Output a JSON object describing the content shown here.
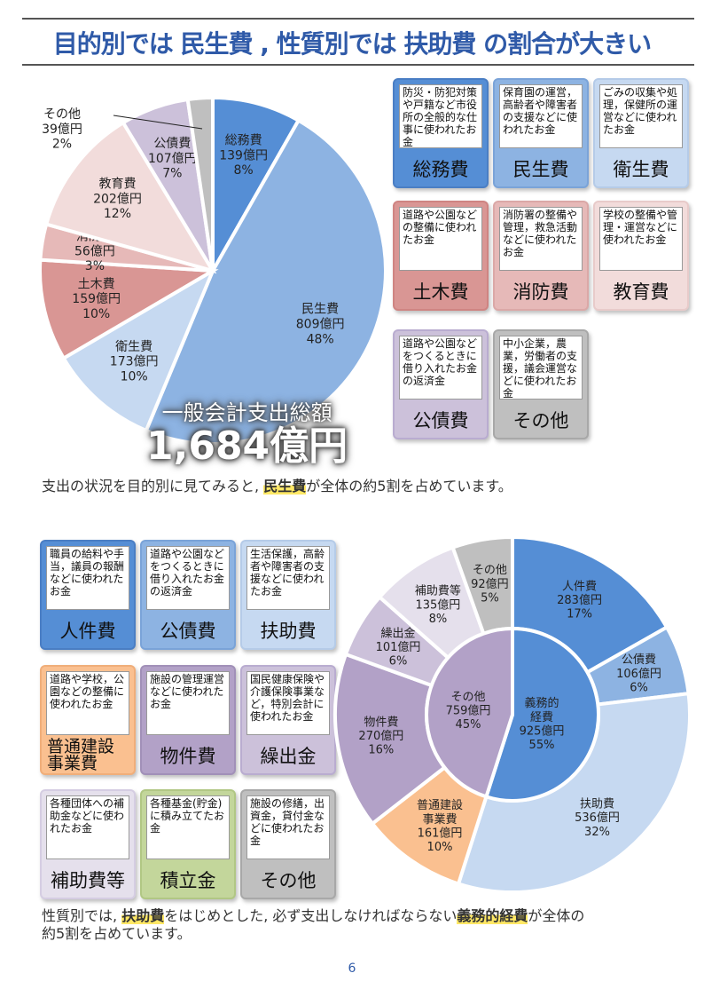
{
  "title": "目的別では 民生費 , 性質別では 扶助費 の割合が大きい",
  "purpose_section": {
    "total_label": "一般会計支出総額",
    "total_value": "1,684億円",
    "caption_before": "支出の状況を目的別に見てみると, ",
    "caption_highlight": "民生費",
    "caption_after": "が全体の約5割を占めています。",
    "cards": [
      {
        "label": "総務費",
        "desc": "防災・防犯対策や戸籍など市役所の全般的な仕事に使われたお金",
        "color": "#558ed5",
        "border": "#4a7ec4"
      },
      {
        "label": "民生費",
        "desc": "保育園の運営，高齢者や障害者の支援などに使われたお金",
        "color": "#8db3e2",
        "border": "#7aa3d8"
      },
      {
        "label": "衛生費",
        "desc": "ごみの収集や処理，保健所の運営などに使われたお金",
        "color": "#c6d9f1",
        "border": "#b5cbe8"
      },
      {
        "label": "土木費",
        "desc": "道路や公園などの整備に使われたお金",
        "color": "#d99694",
        "border": "#cf8482"
      },
      {
        "label": "消防費",
        "desc": "消防署の整備や管理，救急活動などに使われたお金",
        "color": "#e6b9b8",
        "border": "#dba8a7"
      },
      {
        "label": "教育費",
        "desc": "学校の整備や管理・運営などに使われたお金",
        "color": "#f2dcdb",
        "border": "#e8cbca"
      },
      {
        "label": "公債費",
        "desc": "道路や公園などをつくるときに借り入れたお金の返済金",
        "color": "#ccc1da",
        "border": "#b9acd0"
      },
      {
        "label": "その他",
        "desc": "中小企業，農業，労働者の支援，議会運営などに使われたお金",
        "color": "#bfbfbf",
        "border": "#a8a8a8"
      }
    ]
  },
  "nature_section": {
    "caption_p1": "性質別では, ",
    "caption_h1": "扶助費",
    "caption_p2": "をはじめとした, 必ず支出しなければならない",
    "caption_h2": "義務的経費",
    "caption_p3": "が全体の",
    "caption_line2": "約5割を占めています。",
    "cards": [
      {
        "label": "人件費",
        "desc": "職員の給料や手当，議員の報酬などに使われたお金",
        "color": "#558ed5",
        "border": "#4a7ec4"
      },
      {
        "label": "公債費",
        "desc": "道路や公園などをつくるときに借り入れたお金の返済金",
        "color": "#8db3e2",
        "border": "#7aa3d8"
      },
      {
        "label": "扶助費",
        "desc": "生活保護，高齢者や障害者の支援などに使われたお金",
        "color": "#c6d9f1",
        "border": "#b5cbe8"
      },
      {
        "label": "普通建設\n事業費",
        "desc": "道路や学校，公園などの整備に使われたお金",
        "color": "#fac090",
        "border": "#f0ae7a"
      },
      {
        "label": "物件費",
        "desc": "施設の管理運営などに使われたお金",
        "color": "#b2a1c7",
        "border": "#a190b8"
      },
      {
        "label": "繰出金",
        "desc": "国民健康保険や介護保険事業など，特別会計に使われたお金",
        "color": "#ccc1da",
        "border": "#b9acd0"
      },
      {
        "label": "補助費等",
        "desc": "各種団体への補助金などに使われたお金",
        "color": "#e5e0ec",
        "border": "#d5cde2"
      },
      {
        "label": "積立金",
        "desc": "各種基金(貯金)に積み立てたお金",
        "color": "#c3d69b",
        "border": "#b1c784"
      },
      {
        "label": "その他",
        "desc": "施設の修繕，出資金，貸付金などに使われたお金",
        "color": "#bfbfbf",
        "border": "#a8a8a8"
      }
    ]
  },
  "page_number": "6",
  "chart_data": [
    {
      "type": "pie",
      "title": "目的別 一般会計支出総額 1,684億円",
      "categories": [
        "総務費",
        "民生費",
        "衛生費",
        "土木費",
        "消防費",
        "教育費",
        "公債費",
        "その他"
      ],
      "values": [
        139,
        809,
        173,
        159,
        56,
        202,
        107,
        39
      ],
      "percent": [
        8,
        48,
        10,
        10,
        3,
        12,
        7,
        2
      ],
      "unit": "億円",
      "colors": [
        "#558ed5",
        "#8db3e2",
        "#c6d9f1",
        "#d99694",
        "#e6b9b8",
        "#f2dcdb",
        "#ccc1da",
        "#bfbfbf"
      ],
      "labels": [
        {
          "name": "総務費",
          "value": "139億円",
          "pct": "8%"
        },
        {
          "name": "民生費",
          "value": "809億円",
          "pct": "48%"
        },
        {
          "name": "衛生費",
          "value": "173億円",
          "pct": "10%"
        },
        {
          "name": "土木費",
          "value": "159億円",
          "pct": "10%"
        },
        {
          "name": "消防費",
          "value": "56億円",
          "pct": "3%"
        },
        {
          "name": "教育費",
          "value": "202億円",
          "pct": "12%"
        },
        {
          "name": "公債費",
          "value": "107億円",
          "pct": "7%"
        },
        {
          "name": "その他",
          "value": "39億円",
          "pct": "2%"
        }
      ]
    },
    {
      "type": "pie",
      "title": "性質別 (ドーナツ)",
      "inner": {
        "categories": [
          "義務的経費",
          "その他"
        ],
        "values": [
          925,
          759
        ],
        "percent": [
          55,
          45
        ],
        "colors": [
          "#558ed5",
          "#b2a1c7"
        ],
        "labels": [
          {
            "name": "義務的\n経費",
            "value": "925億円",
            "pct": "55%"
          },
          {
            "name": "その他",
            "value": "759億円",
            "pct": "45%"
          }
        ]
      },
      "outer": {
        "categories": [
          "人件費",
          "公債費",
          "扶助費",
          "普通建設事業費",
          "物件費",
          "繰出金",
          "補助費等",
          "その他"
        ],
        "values": [
          283,
          106,
          536,
          161,
          270,
          101,
          135,
          92
        ],
        "percent": [
          17,
          6,
          32,
          10,
          16,
          6,
          8,
          5
        ],
        "colors": [
          "#558ed5",
          "#8db3e2",
          "#c6d9f1",
          "#fac090",
          "#b2a1c7",
          "#ccc1da",
          "#e5e0ec",
          "#bfbfbf"
        ],
        "labels": [
          {
            "name": "人件費",
            "value": "283億円",
            "pct": "17%"
          },
          {
            "name": "公債費",
            "value": "106億円",
            "pct": "6%"
          },
          {
            "name": "扶助費",
            "value": "536億円",
            "pct": "32%"
          },
          {
            "name": "普通建設\n事業費",
            "value": "161億円",
            "pct": "10%"
          },
          {
            "name": "物件費",
            "value": "270億円",
            "pct": "16%"
          },
          {
            "name": "繰出金",
            "value": "101億円",
            "pct": "6%"
          },
          {
            "name": "補助費等",
            "value": "135億円",
            "pct": "8%"
          },
          {
            "name": "その他",
            "value": "92億円",
            "pct": "5%"
          }
        ]
      },
      "unit": "億円"
    }
  ]
}
